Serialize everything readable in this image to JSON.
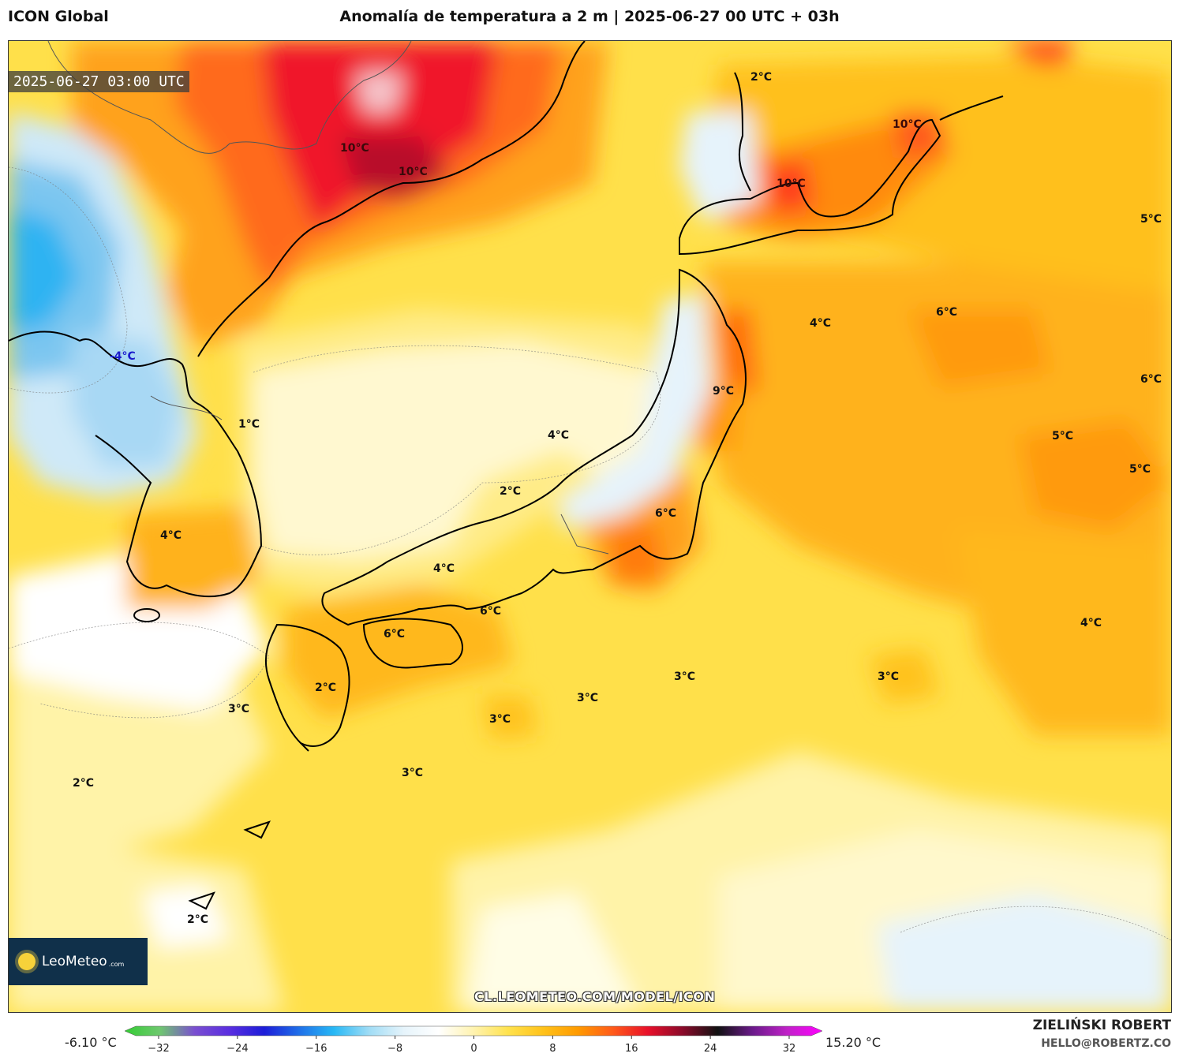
{
  "header": {
    "model": "ICON Global",
    "title": "Anomalía de temperatura a 2 m | 2025-06-27 00 UTC + 03h"
  },
  "map": {
    "valid_time": "2025-06-27 03:00 UTC",
    "logo_text": "LeoMeteo",
    "logo_suffix": ".com",
    "url": "CL.LEOMETEO.COM/MODEL/ICON",
    "labels": [
      {
        "text": "2°C"
      },
      {
        "text": "10°C"
      },
      {
        "text": "10°C"
      },
      {
        "text": "10°C"
      },
      {
        "text": "10°C"
      },
      {
        "text": "5°C"
      },
      {
        "text": "4°C"
      },
      {
        "text": "6°C"
      },
      {
        "text": "6°C"
      },
      {
        "text": "9°C"
      },
      {
        "text": "-4°C"
      },
      {
        "text": "1°C"
      },
      {
        "text": "4°C"
      },
      {
        "text": "5°C"
      },
      {
        "text": "5°C"
      },
      {
        "text": "2°C"
      },
      {
        "text": "6°C"
      },
      {
        "text": "4°C"
      },
      {
        "text": "4°C"
      },
      {
        "text": "4°C"
      },
      {
        "text": "6°C"
      },
      {
        "text": "6°C"
      },
      {
        "text": "3°C"
      },
      {
        "text": "3°C"
      },
      {
        "text": "2°C"
      },
      {
        "text": "3°C"
      },
      {
        "text": "3°C"
      },
      {
        "text": "3°C"
      },
      {
        "text": "2°C"
      },
      {
        "text": "3°C"
      },
      {
        "text": "2°C"
      }
    ]
  },
  "colorbar": {
    "min_label": "-6.10 °C",
    "max_label": "15.20 °C",
    "ticks": [
      "−32",
      "−24",
      "−16",
      "−8",
      "0",
      "8",
      "16",
      "24",
      "32"
    ],
    "colors": [
      "#33cc33",
      "#6ec86e",
      "#7a4fd0",
      "#5a2ee0",
      "#1d1dd8",
      "#1f6fe8",
      "#27b8f5",
      "#9fdcf5",
      "#e6f4fb",
      "#ffffff",
      "#fff3b0",
      "#ffe24d",
      "#ffc21a",
      "#ff9a00",
      "#ff5a1a",
      "#e8102a",
      "#8a0a2a",
      "#111111",
      "#6a1a8a",
      "#c022c8",
      "#ff00ff"
    ]
  },
  "footer": {
    "author": "ZIELIŃSKI ROBERT",
    "email": "HELLO@ROBERTZ.CO"
  }
}
